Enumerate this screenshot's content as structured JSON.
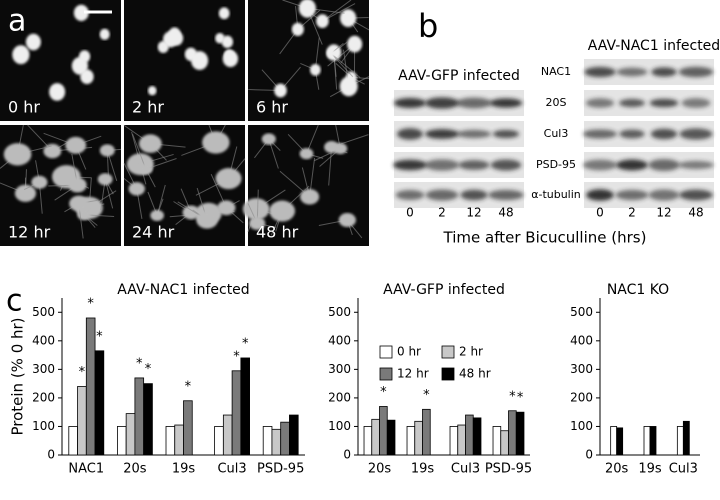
{
  "panel_a": {
    "label": "a",
    "images": [
      "0 hr",
      "2 hr",
      "6 hr",
      "12 hr",
      "24 hr",
      "48 hr"
    ]
  },
  "panel_b": {
    "label": "b",
    "xlabel": "Time after Bicuculline (hrs)",
    "rows": [
      "NAC1",
      "20S",
      "Cul3",
      "PSD-95",
      "α-tubulin"
    ],
    "groups": [
      {
        "title": "AAV-GFP infected",
        "lanes": [
          "0",
          "2",
          "12",
          "48"
        ]
      },
      {
        "title": "AAV-NAC1 infected",
        "lanes": [
          "0",
          "2",
          "12",
          "48"
        ]
      }
    ]
  },
  "panel_c_label": "c",
  "chart_data": [
    {
      "type": "bar",
      "title": "AAV-NAC1 infected",
      "ylabel": "Protein (% 0 hr)",
      "categories": [
        "NAC1",
        "20s",
        "19s",
        "Cul3",
        "PSD-95"
      ],
      "ylim": [
        0,
        550
      ],
      "yticks": [
        0,
        100,
        200,
        300,
        400,
        500
      ],
      "series": [
        {
          "name": "0 hr",
          "color": "#ffffff",
          "values": [
            100,
            100,
            100,
            100,
            100
          ],
          "significance": [
            null,
            null,
            null,
            null,
            null
          ]
        },
        {
          "name": "2 hr",
          "color": "#c8c8c8",
          "values": [
            240,
            145,
            105,
            140,
            90
          ],
          "significance": [
            "*",
            null,
            null,
            null,
            null
          ]
        },
        {
          "name": "12 hr",
          "color": "#7a7a7a",
          "values": [
            480,
            270,
            190,
            295,
            115
          ],
          "significance": [
            "*",
            "*",
            "*",
            "*",
            null
          ]
        },
        {
          "name": "48 hr",
          "color": "#000000",
          "values": [
            365,
            250,
            null,
            340,
            140
          ],
          "significance": [
            "*",
            "*",
            null,
            "*",
            null
          ]
        }
      ]
    },
    {
      "type": "bar",
      "title": "AAV-GFP infected",
      "legend": true,
      "categories": [
        "20s",
        "19s",
        "Cul3",
        "PSD-95"
      ],
      "ylim": [
        0,
        550
      ],
      "yticks": [
        0,
        100,
        200,
        300,
        400,
        500
      ],
      "series": [
        {
          "name": "0 hr",
          "color": "#ffffff",
          "values": [
            100,
            100,
            100,
            100
          ],
          "significance": [
            null,
            null,
            null,
            null
          ]
        },
        {
          "name": "2 hr",
          "color": "#c8c8c8",
          "values": [
            125,
            118,
            105,
            85
          ],
          "significance": [
            null,
            null,
            null,
            null
          ]
        },
        {
          "name": "12 hr",
          "color": "#7a7a7a",
          "values": [
            170,
            160,
            140,
            155
          ],
          "significance": [
            "*",
            "*",
            null,
            "*"
          ]
        },
        {
          "name": "48 hr",
          "color": "#000000",
          "values": [
            122,
            null,
            130,
            150
          ],
          "significance": [
            null,
            null,
            null,
            "*"
          ]
        }
      ]
    },
    {
      "type": "bar",
      "title": "NAC1 KO",
      "categories": [
        "20s",
        "19s",
        "Cul3"
      ],
      "ylim": [
        0,
        550
      ],
      "yticks": [
        0,
        100,
        200,
        300,
        400,
        500
      ],
      "series": [
        {
          "name": "0 hr",
          "color": "#ffffff",
          "values": [
            100,
            100,
            100
          ],
          "significance": [
            null,
            null,
            null
          ]
        },
        {
          "name": "48 hr",
          "color": "#000000",
          "values": [
            95,
            100,
            118
          ],
          "significance": [
            null,
            null,
            null
          ]
        }
      ]
    }
  ]
}
